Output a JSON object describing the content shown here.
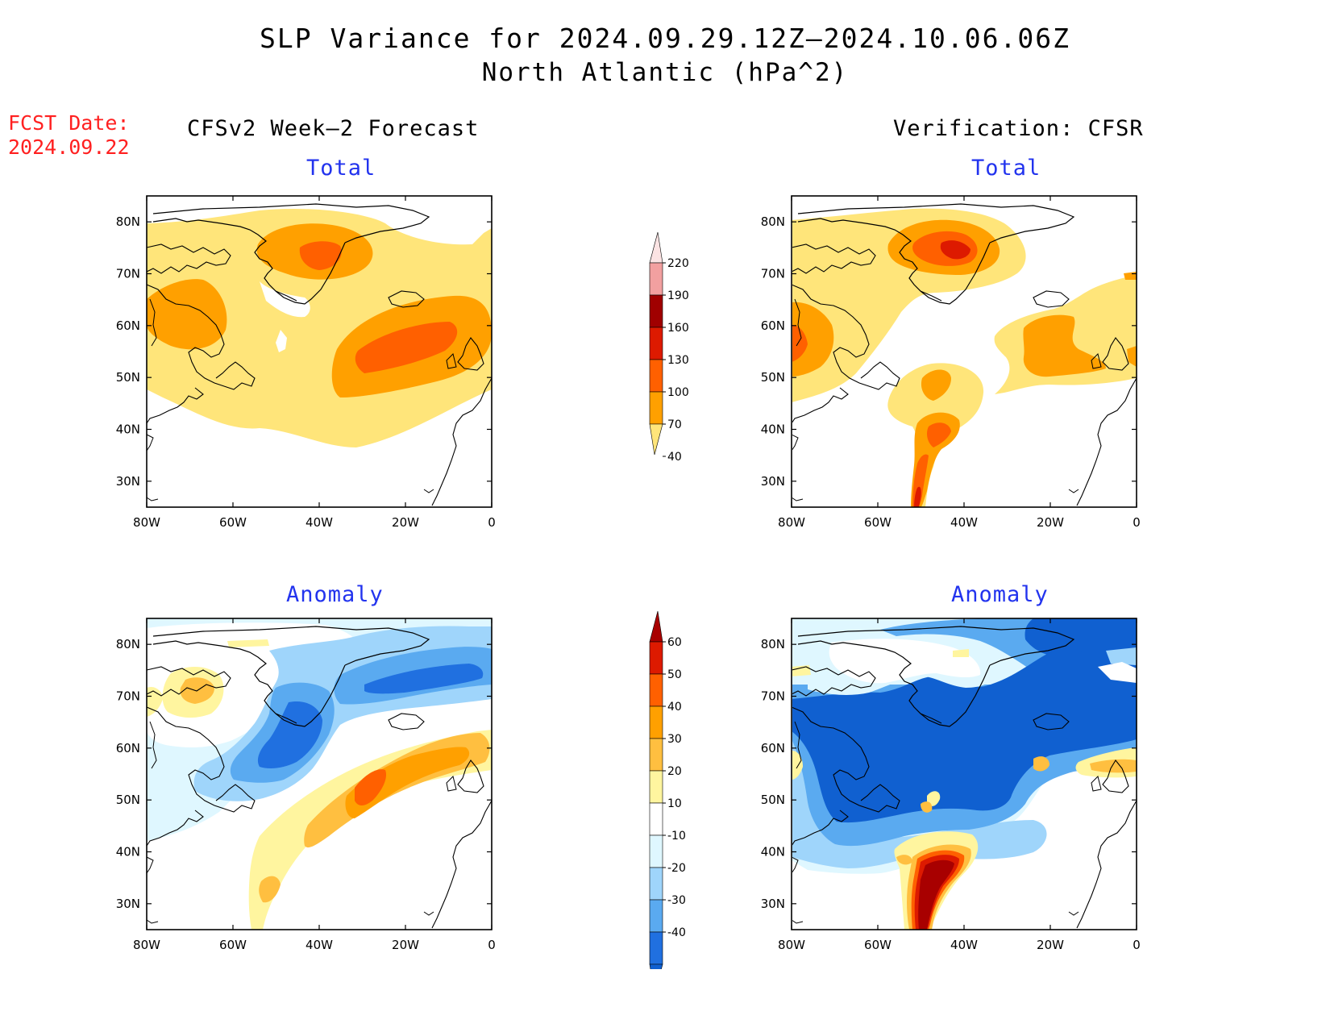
{
  "title_line1": "SLP Variance for 2024.09.29.12Z–2024.10.06.06Z",
  "title_line2": "North Atlantic (hPa^2)",
  "fcst_label": "FCST Date:",
  "fcst_date": "2024.09.22",
  "col_left_title": "CFSv2 Week–2 Forecast",
  "col_right_title": "Verification: CFSR",
  "panel_total_label": "Total",
  "panel_anomaly_label": "Anomaly",
  "axes": {
    "lon_ticks": [
      "80W",
      "60W",
      "40W",
      "20W",
      "0"
    ],
    "lat_ticks": [
      "80N",
      "70N",
      "60N",
      "50N",
      "40N",
      "30N"
    ],
    "lon_range": [
      -80,
      0
    ],
    "lat_range": [
      25,
      85
    ]
  },
  "colorbar_total": {
    "levels": [
      "220",
      "190",
      "160",
      "130",
      "100",
      "70",
      "40"
    ],
    "colors": [
      "#fbe3e3",
      "#f2a0a0",
      "#a00000",
      "#dd1a00",
      "#ff6000",
      "#ffa000",
      "#ffe57a"
    ]
  },
  "colorbar_anomaly": {
    "levels": [
      "60",
      "50",
      "40",
      "30",
      "20",
      "10",
      "-10",
      "-20",
      "-30",
      "-40"
    ],
    "colors": [
      "#a80000",
      "#dd1a00",
      "#ff6000",
      "#ffa000",
      "#ffbf40",
      "#fff59f",
      "#ffffff",
      "#dff7ff",
      "#9fd5fb",
      "#5aaaf0",
      "#2070e0",
      "#1060d0"
    ]
  },
  "chart_data": [
    {
      "panel": "CFSv2 Week–2 Forecast — Total",
      "type": "heatmap",
      "units": "hPa^2",
      "features": [
        {
          "region": "Greenland Sea ~72N 40W",
          "value_range": "100-130"
        },
        {
          "region": "Central N Atlantic ~55N 25W",
          "value_range": "100-130"
        },
        {
          "region": "Labrador / Hudson ~60N 72W",
          "value_range": "70-100"
        }
      ]
    },
    {
      "panel": "Verification: CFSR — Total",
      "type": "heatmap",
      "units": "hPa^2",
      "features": [
        {
          "region": "Greenland ~74N 38W",
          "value_range": "130-160"
        },
        {
          "region": "~38N 45W",
          "value_range": "100-130"
        },
        {
          "region": "~55N 20W",
          "value_range": "70-100"
        }
      ]
    },
    {
      "panel": "CFSv2 Week–2 Forecast — Anomaly",
      "type": "heatmap",
      "units": "hPa^2",
      "features": [
        {
          "region": "~72N 15W",
          "value_range": "-30 to -40"
        },
        {
          "region": "~55N 50W",
          "value_range": "-30 to -40"
        },
        {
          "region": "~48N 28W",
          "value_range": "30-40"
        }
      ]
    },
    {
      "panel": "Verification: CFSR — Anomaly",
      "type": "heatmap",
      "units": "hPa^2",
      "features": [
        {
          "region": "Greenland / Labrador Sea",
          "value_range": "below -40"
        },
        {
          "region": "~33N 50W",
          "value_range": "above 60"
        }
      ]
    }
  ]
}
